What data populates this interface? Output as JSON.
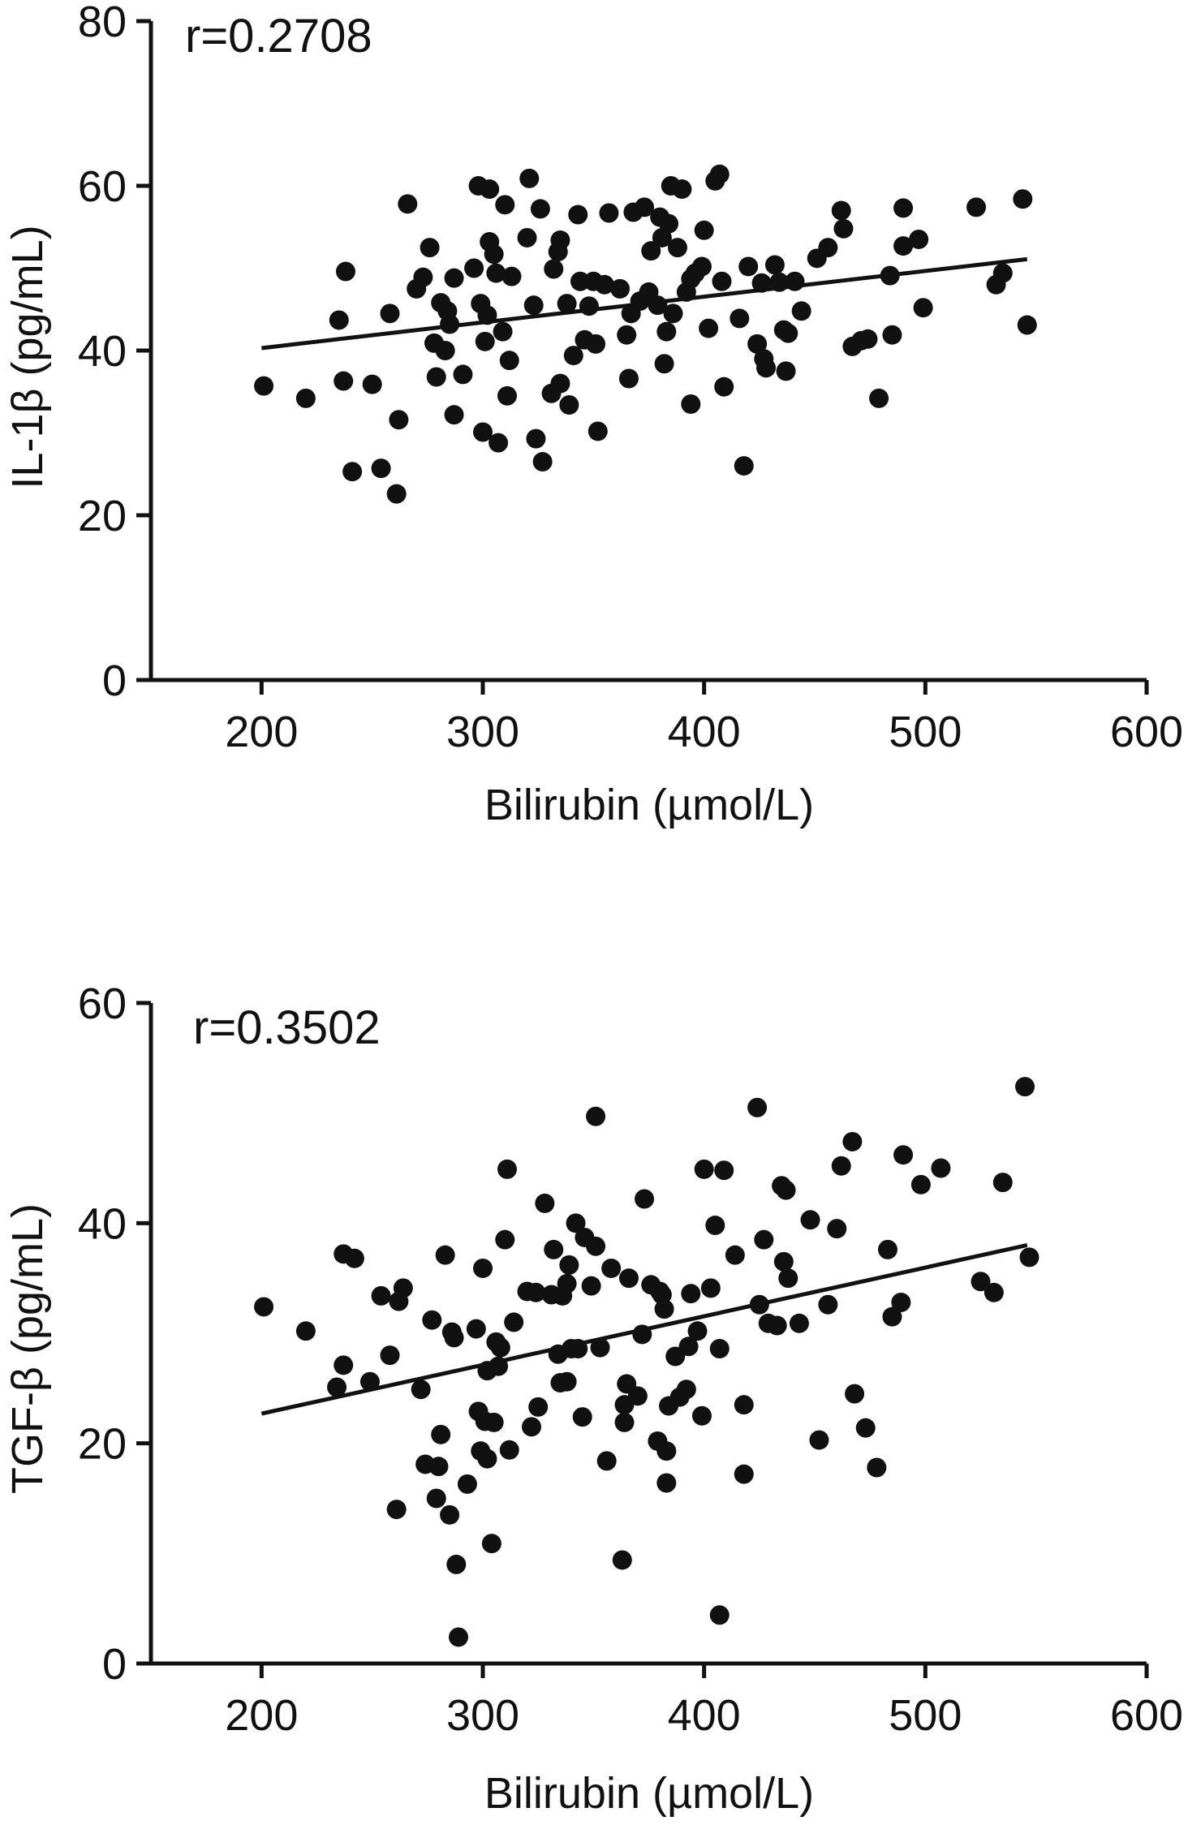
{
  "chart_data": [
    {
      "type": "scatter",
      "correlation_label": "r=0.2708",
      "xlabel": "Bilirubin (µmol/L)",
      "ylabel": "IL-1β (pg/mL)",
      "xlim": [
        150,
        600
      ],
      "ylim": [
        0,
        80
      ],
      "xticks": [
        200,
        300,
        400,
        500,
        600
      ],
      "yticks": [
        0,
        20,
        40,
        60,
        80
      ],
      "fit_line": {
        "x": [
          200,
          546
        ],
        "y": [
          40.3,
          51.1
        ]
      },
      "series": [
        {
          "points": [
            [
              201,
              35.7
            ],
            [
              220,
              34.2
            ],
            [
              235,
              43.7
            ],
            [
              237,
              36.3
            ],
            [
              238,
              49.6
            ],
            [
              241,
              25.3
            ],
            [
              250,
              35.9
            ],
            [
              254,
              25.7
            ],
            [
              258,
              44.5
            ],
            [
              262,
              31.6
            ],
            [
              261,
              22.6
            ],
            [
              266,
              57.8
            ],
            [
              270,
              47.5
            ],
            [
              273,
              48.9
            ],
            [
              276,
              52.5
            ],
            [
              278,
              40.9
            ],
            [
              279,
              36.8
            ],
            [
              281,
              45.8
            ],
            [
              283,
              40.0
            ],
            [
              284,
              44.8
            ],
            [
              285,
              43.2
            ],
            [
              287,
              32.2
            ],
            [
              287,
              48.8
            ],
            [
              291,
              37.1
            ],
            [
              296,
              50.0
            ],
            [
              298,
              60.0
            ],
            [
              299,
              45.7
            ],
            [
              300,
              30.1
            ],
            [
              301,
              41.1
            ],
            [
              302,
              44.3
            ],
            [
              303,
              53.2
            ],
            [
              303,
              59.6
            ],
            [
              305,
              51.7
            ],
            [
              306,
              49.4
            ],
            [
              307,
              28.8
            ],
            [
              309,
              42.3
            ],
            [
              310,
              57.7
            ],
            [
              311,
              34.5
            ],
            [
              312,
              38.8
            ],
            [
              313,
              49.0
            ],
            [
              320,
              53.7
            ],
            [
              321,
              60.9
            ],
            [
              323,
              45.5
            ],
            [
              324,
              29.3
            ],
            [
              326,
              57.2
            ],
            [
              327,
              26.5
            ],
            [
              331,
              34.8
            ],
            [
              332,
              49.9
            ],
            [
              334,
              52.0
            ],
            [
              335,
              53.4
            ],
            [
              335,
              36.0
            ],
            [
              338,
              45.7
            ],
            [
              339,
              33.4
            ],
            [
              341,
              39.4
            ],
            [
              343,
              56.5
            ],
            [
              344,
              48.4
            ],
            [
              346,
              41.3
            ],
            [
              348,
              45.4
            ],
            [
              350,
              48.4
            ],
            [
              351,
              40.8
            ],
            [
              352,
              30.2
            ],
            [
              355,
              48.0
            ],
            [
              357,
              56.7
            ],
            [
              362,
              47.5
            ],
            [
              365,
              41.9
            ],
            [
              366,
              36.6
            ],
            [
              367,
              44.5
            ],
            [
              368,
              56.8
            ],
            [
              371,
              46.0
            ],
            [
              373,
              57.4
            ],
            [
              375,
              47.1
            ],
            [
              376,
              52.1
            ],
            [
              379,
              45.5
            ],
            [
              380,
              56.2
            ],
            [
              381,
              53.7
            ],
            [
              382,
              38.4
            ],
            [
              383,
              42.3
            ],
            [
              384,
              55.4
            ],
            [
              385,
              60.0
            ],
            [
              386,
              44.5
            ],
            [
              388,
              52.5
            ],
            [
              390,
              59.6
            ],
            [
              392,
              47.1
            ],
            [
              394,
              48.7
            ],
            [
              394,
              33.5
            ],
            [
              396,
              49.4
            ],
            [
              399,
              50.2
            ],
            [
              400,
              54.6
            ],
            [
              402,
              42.7
            ],
            [
              405,
              60.6
            ],
            [
              407,
              61.4
            ],
            [
              408,
              48.4
            ],
            [
              409,
              35.6
            ],
            [
              416,
              43.9
            ],
            [
              418,
              26.0
            ],
            [
              420,
              50.2
            ],
            [
              424,
              40.8
            ],
            [
              426,
              48.2
            ],
            [
              427,
              39.0
            ],
            [
              428,
              37.9
            ],
            [
              432,
              50.4
            ],
            [
              434,
              48.3
            ],
            [
              436,
              42.5
            ],
            [
              437,
              37.5
            ],
            [
              438,
              42.1
            ],
            [
              441,
              48.4
            ],
            [
              444,
              44.8
            ],
            [
              451,
              51.2
            ],
            [
              456,
              52.5
            ],
            [
              462,
              57.0
            ],
            [
              463,
              54.8
            ],
            [
              467,
              40.5
            ],
            [
              471,
              41.2
            ],
            [
              474,
              41.4
            ],
            [
              479,
              34.2
            ],
            [
              484,
              49.1
            ],
            [
              485,
              41.9
            ],
            [
              490,
              52.7
            ],
            [
              490,
              57.3
            ],
            [
              497,
              53.5
            ],
            [
              499,
              45.2
            ],
            [
              523,
              57.4
            ],
            [
              532,
              48.0
            ],
            [
              535,
              49.4
            ],
            [
              544,
              58.4
            ],
            [
              546,
              43.1
            ]
          ]
        }
      ]
    },
    {
      "type": "scatter",
      "correlation_label": "r=0.3502",
      "xlabel": "Bilirubin (µmol/L)",
      "ylabel": "TGF-β (pg/mL)",
      "xlim": [
        150,
        600
      ],
      "ylim": [
        0,
        60
      ],
      "xticks": [
        200,
        300,
        400,
        500,
        600
      ],
      "yticks": [
        0,
        20,
        40,
        60
      ],
      "fit_line": {
        "x": [
          200,
          546
        ],
        "y": [
          22.7,
          38.0
        ]
      },
      "series": [
        {
          "points": [
            [
              201,
              32.4
            ],
            [
              220,
              30.2
            ],
            [
              234,
              25.1
            ],
            [
              237,
              27.1
            ],
            [
              237,
              37.2
            ],
            [
              242,
              36.8
            ],
            [
              249,
              25.6
            ],
            [
              254,
              33.4
            ],
            [
              258,
              28.0
            ],
            [
              261,
              14.0
            ],
            [
              262,
              32.9
            ],
            [
              264,
              34.1
            ],
            [
              272,
              24.9
            ],
            [
              274,
              18.1
            ],
            [
              277,
              31.2
            ],
            [
              279,
              15.0
            ],
            [
              280,
              17.9
            ],
            [
              281,
              20.8
            ],
            [
              283,
              37.1
            ],
            [
              285,
              13.5
            ],
            [
              286,
              30.1
            ],
            [
              287,
              29.6
            ],
            [
              288,
              9.0
            ],
            [
              289,
              2.4
            ],
            [
              293,
              16.3
            ],
            [
              297,
              30.4
            ],
            [
              298,
              22.9
            ],
            [
              299,
              19.3
            ],
            [
              300,
              35.9
            ],
            [
              301,
              22.0
            ],
            [
              302,
              26.6
            ],
            [
              302,
              18.6
            ],
            [
              304,
              10.9
            ],
            [
              305,
              21.9
            ],
            [
              306,
              29.2
            ],
            [
              307,
              27.0
            ],
            [
              308,
              28.7
            ],
            [
              310,
              38.5
            ],
            [
              311,
              44.9
            ],
            [
              312,
              19.4
            ],
            [
              314,
              31.0
            ],
            [
              320,
              33.8
            ],
            [
              322,
              21.5
            ],
            [
              324,
              33.7
            ],
            [
              325,
              23.3
            ],
            [
              328,
              41.8
            ],
            [
              331,
              33.5
            ],
            [
              332,
              37.6
            ],
            [
              334,
              28.1
            ],
            [
              335,
              25.5
            ],
            [
              336,
              33.4
            ],
            [
              338,
              34.5
            ],
            [
              338,
              25.6
            ],
            [
              339,
              36.2
            ],
            [
              340,
              28.6
            ],
            [
              342,
              40.0
            ],
            [
              343,
              28.6
            ],
            [
              345,
              22.4
            ],
            [
              346,
              38.7
            ],
            [
              349,
              34.3
            ],
            [
              351,
              49.7
            ],
            [
              351,
              37.9
            ],
            [
              353,
              28.7
            ],
            [
              356,
              18.4
            ],
            [
              358,
              35.9
            ],
            [
              363,
              9.4
            ],
            [
              364,
              21.9
            ],
            [
              364,
              23.5
            ],
            [
              365,
              25.4
            ],
            [
              366,
              35.0
            ],
            [
              370,
              24.3
            ],
            [
              372,
              29.9
            ],
            [
              373,
              42.2
            ],
            [
              376,
              34.4
            ],
            [
              379,
              20.2
            ],
            [
              380,
              33.8
            ],
            [
              381,
              33.5
            ],
            [
              382,
              32.2
            ],
            [
              383,
              16.4
            ],
            [
              383,
              19.3
            ],
            [
              384,
              23.4
            ],
            [
              387,
              27.9
            ],
            [
              389,
              24.2
            ],
            [
              392,
              24.9
            ],
            [
              393,
              28.8
            ],
            [
              394,
              33.6
            ],
            [
              397,
              30.2
            ],
            [
              399,
              22.5
            ],
            [
              400,
              44.9
            ],
            [
              403,
              34.1
            ],
            [
              405,
              39.8
            ],
            [
              407,
              4.4
            ],
            [
              407,
              28.6
            ],
            [
              409,
              44.8
            ],
            [
              414,
              37.1
            ],
            [
              418,
              17.2
            ],
            [
              418,
              23.5
            ],
            [
              424,
              50.5
            ],
            [
              425,
              32.6
            ],
            [
              427,
              38.5
            ],
            [
              429,
              30.9
            ],
            [
              433,
              30.7
            ],
            [
              435,
              43.4
            ],
            [
              436,
              36.5
            ],
            [
              437,
              43.0
            ],
            [
              438,
              35.0
            ],
            [
              443,
              30.9
            ],
            [
              448,
              40.3
            ],
            [
              452,
              20.3
            ],
            [
              456,
              32.6
            ],
            [
              460,
              39.5
            ],
            [
              462,
              45.2
            ],
            [
              467,
              47.4
            ],
            [
              468,
              24.5
            ],
            [
              473,
              21.4
            ],
            [
              478,
              17.8
            ],
            [
              483,
              37.6
            ],
            [
              485,
              31.5
            ],
            [
              489,
              32.8
            ],
            [
              490,
              46.2
            ],
            [
              498,
              43.5
            ],
            [
              507,
              45.0
            ],
            [
              525,
              34.7
            ],
            [
              531,
              33.7
            ],
            [
              535,
              43.7
            ],
            [
              545,
              52.4
            ],
            [
              547,
              36.9
            ]
          ]
        }
      ]
    }
  ]
}
